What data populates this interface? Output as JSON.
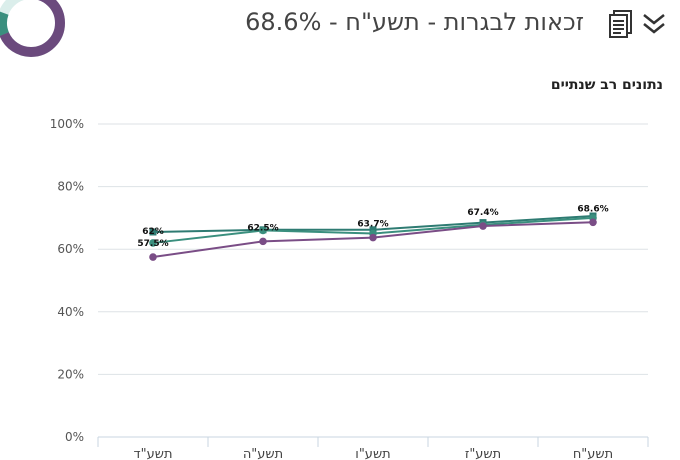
{
  "header": {
    "title": "זכאות לבגרות - תשע\"ח - 68.6%",
    "icons": {
      "document": "document-icon",
      "expand": "chevron-double-down-icon"
    }
  },
  "donut": {
    "value_percent": 68.6,
    "colors": {
      "filled": "#6b4a7d",
      "remaining": "#3a8f7e",
      "track": "#dbeeeb"
    }
  },
  "colors": {
    "series_a": "#7a4d86",
    "series_b": "#3a8f7e",
    "series_c": "#2e7b72"
  },
  "chart_data": {
    "type": "line",
    "title": "נתונים רב שנתיים",
    "categories": [
      "תשע\"ד",
      "תשע\"ה",
      "תשע\"ו",
      "תשע\"ז",
      "תשע\"ח"
    ],
    "ylim": [
      0,
      100
    ],
    "yticks": [
      "0%",
      "20%",
      "40%",
      "60%",
      "80%",
      "100%"
    ],
    "grid": true,
    "series": [
      {
        "values": [
          57.5,
          62.5,
          63.7,
          67.4,
          68.6
        ],
        "color": "#7a4d86",
        "marker": "circle",
        "labels": [
          "57.5%",
          "62.5%",
          "63.7%",
          "67.4%",
          "68.6%"
        ]
      },
      {
        "values": [
          62,
          66,
          65,
          67.8,
          70
        ],
        "color": "#3a8f7e",
        "marker": "circle",
        "labels": [
          "62%",
          "",
          "",
          "",
          ""
        ]
      },
      {
        "values": [
          65.5,
          66.2,
          66.2,
          68.5,
          70.6
        ],
        "color": "#2e7b72",
        "marker": "square",
        "labels": [
          "",
          "",
          "",
          "",
          ""
        ]
      }
    ]
  }
}
